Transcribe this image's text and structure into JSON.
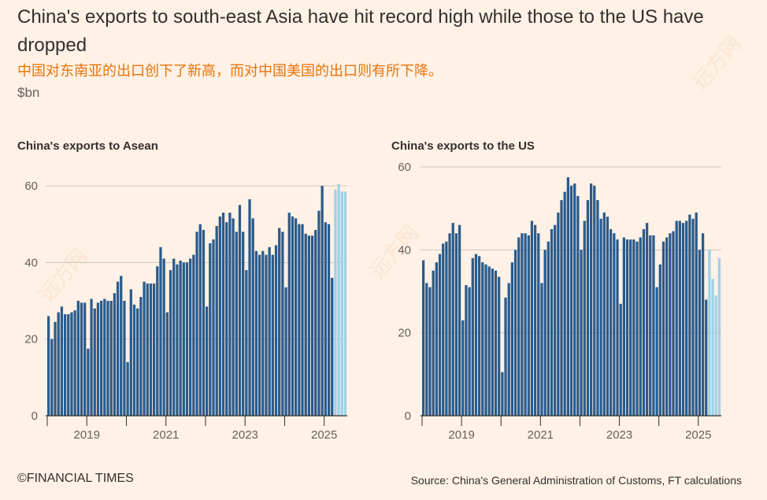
{
  "header": {
    "title": "China's exports to south-east Asia have hit record high while those to the US have dropped",
    "subtitle_cn": "中国对东南亚的出口创下了新高，而对中国美国的出口则有所下降。",
    "unit": "$bn"
  },
  "footer": {
    "credit": "©FINANCIAL TIMES",
    "source": "Source: China's General Administration of Customs, FT calculations"
  },
  "colors": {
    "historic_bar": "#2A5B8C",
    "recent_bar": "#9ED1E8",
    "gridline": "#CEC6B9",
    "axis": "#33302E",
    "background": "#FFF1E5",
    "subtitle": "#E8730C"
  },
  "watermark": {
    "text": "远方网"
  },
  "chart_data": [
    {
      "type": "bar",
      "title": "China's exports to Asean",
      "ylim": [
        0,
        60
      ],
      "yticks": [
        "0",
        "20",
        "40",
        "60"
      ],
      "xticks": [
        "2019",
        "2021",
        "2023",
        "2025"
      ],
      "start": "2018-01",
      "highlight_from_index": 87,
      "values": [
        26,
        20,
        24.5,
        27,
        28.5,
        26.5,
        26.5,
        27,
        27.5,
        30,
        29.5,
        29.5,
        17.5,
        30.5,
        28,
        29.5,
        30,
        30.5,
        30,
        30,
        32,
        35,
        36.5,
        30,
        14,
        33,
        29,
        28,
        31,
        35,
        34.5,
        34.5,
        34.5,
        39,
        44,
        41,
        27,
        38,
        41,
        39.5,
        40.5,
        40,
        40,
        41,
        42,
        48,
        50,
        48.5,
        28.5,
        45,
        46,
        49.5,
        52,
        53,
        50.5,
        53,
        51.5,
        48,
        55,
        48,
        38,
        56.5,
        51.5,
        43,
        42,
        43,
        42,
        44,
        42,
        44.5,
        49,
        48,
        33.5,
        53,
        52,
        51.5,
        50,
        50,
        47.5,
        47,
        47,
        48.5,
        53.5,
        60,
        50.5,
        50,
        36,
        59,
        60.5,
        58.5,
        58.5
      ]
    },
    {
      "type": "bar",
      "title": "China's exports to the US",
      "ylim": [
        0,
        60
      ],
      "yticks": [
        "0",
        "20",
        "40",
        "60"
      ],
      "xticks": [
        "2019",
        "2021",
        "2023",
        "2025"
      ],
      "start": "2018-01",
      "highlight_from_index": 87,
      "values": [
        37.5,
        32,
        31,
        35,
        37,
        39,
        41.5,
        42,
        44,
        46.5,
        44,
        46,
        23,
        31.5,
        31,
        38,
        39,
        38.5,
        37,
        36.5,
        36,
        35.5,
        35,
        33.5,
        10.5,
        28.5,
        32,
        37,
        40,
        43,
        44,
        44,
        43.5,
        47,
        46,
        44,
        32,
        40,
        42,
        45,
        46,
        49,
        52,
        54,
        57.5,
        55.5,
        56,
        53,
        40,
        47,
        52,
        56,
        55.5,
        52,
        47.5,
        49,
        48,
        45,
        44,
        42.5,
        27,
        43,
        42.5,
        42.5,
        42.5,
        42,
        43,
        45,
        46.5,
        43.5,
        43.5,
        31,
        36.5,
        42,
        43,
        44,
        44.5,
        47,
        47,
        46.5,
        47,
        48.5,
        47.5,
        49,
        40,
        44,
        28,
        40,
        33,
        29,
        38
      ]
    }
  ]
}
